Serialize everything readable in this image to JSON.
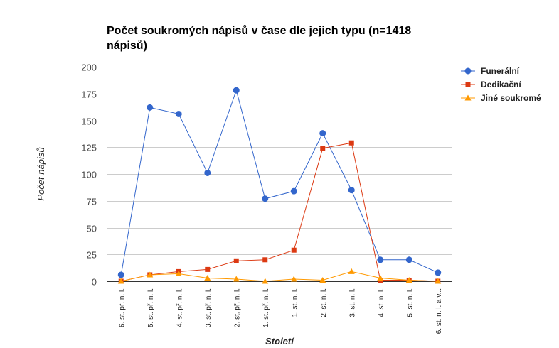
{
  "chart_data": {
    "type": "line",
    "title": "Počet soukromých nápisů v čase dle jejich typu (n=1418 nápisů)",
    "xlabel": "Století",
    "ylabel": "Počet nápisů",
    "ylim": [
      0,
      200
    ],
    "yticks": [
      0,
      25,
      50,
      75,
      100,
      125,
      150,
      175,
      200
    ],
    "grid": true,
    "legend_position": "right",
    "categories": [
      "6. st. př. n. l.",
      "5. st. př. n. l.",
      "4. st. př. n. l.",
      "3. st. př. n. l.",
      "2. st. př. n. l.",
      "1. st. př. n. l.",
      "1. st. n. l.",
      "2. st. n. l.",
      "3. st. n. l.",
      "4. st. n. l.",
      "5. st. n. l.",
      "6. st. n. l. a v..."
    ],
    "series": [
      {
        "name": "Funerální",
        "color": "#3366cc",
        "marker": "circle",
        "values": [
          6,
          162,
          156,
          101,
          178,
          77,
          84,
          138,
          85,
          20,
          20,
          8
        ]
      },
      {
        "name": "Dedikační",
        "color": "#dc3912",
        "marker": "square",
        "values": [
          0,
          6,
          9,
          11,
          19,
          20,
          29,
          124,
          129,
          1,
          1,
          0
        ]
      },
      {
        "name": "Jiné soukromé",
        "color": "#ff9900",
        "marker": "triangle",
        "values": [
          0,
          6,
          7,
          3,
          2,
          0,
          2,
          1,
          9,
          3,
          1,
          0
        ]
      }
    ]
  }
}
